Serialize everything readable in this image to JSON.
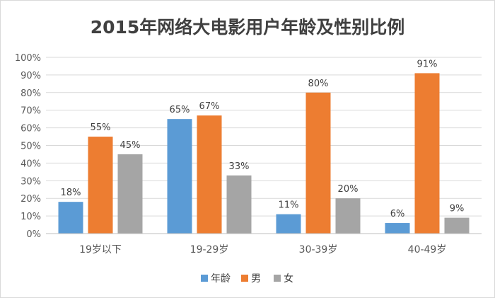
{
  "chart_data": {
    "type": "bar",
    "title": "2015年网络大电影用户年龄及性别比例",
    "categories": [
      "19岁以下",
      "19-29岁",
      "30-39岁",
      "40-49岁"
    ],
    "series": [
      {
        "name": "年龄",
        "color": "#5B9BD5",
        "values": [
          18,
          65,
          11,
          6
        ],
        "labels": [
          "18%",
          "65%",
          "11%",
          "6%"
        ]
      },
      {
        "name": "男",
        "color": "#ED7D31",
        "values": [
          55,
          67,
          80,
          91
        ],
        "labels": [
          "55%",
          "67%",
          "80%",
          "91%"
        ]
      },
      {
        "name": "女",
        "color": "#A5A5A5",
        "values": [
          45,
          33,
          20,
          9
        ],
        "labels": [
          "45%",
          "33%",
          "20%",
          "9%"
        ]
      }
    ],
    "yticks": [
      "0%",
      "10%",
      "20%",
      "30%",
      "40%",
      "50%",
      "60%",
      "70%",
      "80%",
      "90%",
      "100%"
    ],
    "ylim": [
      0,
      100
    ],
    "grid": true,
    "legend_position": "bottom"
  }
}
